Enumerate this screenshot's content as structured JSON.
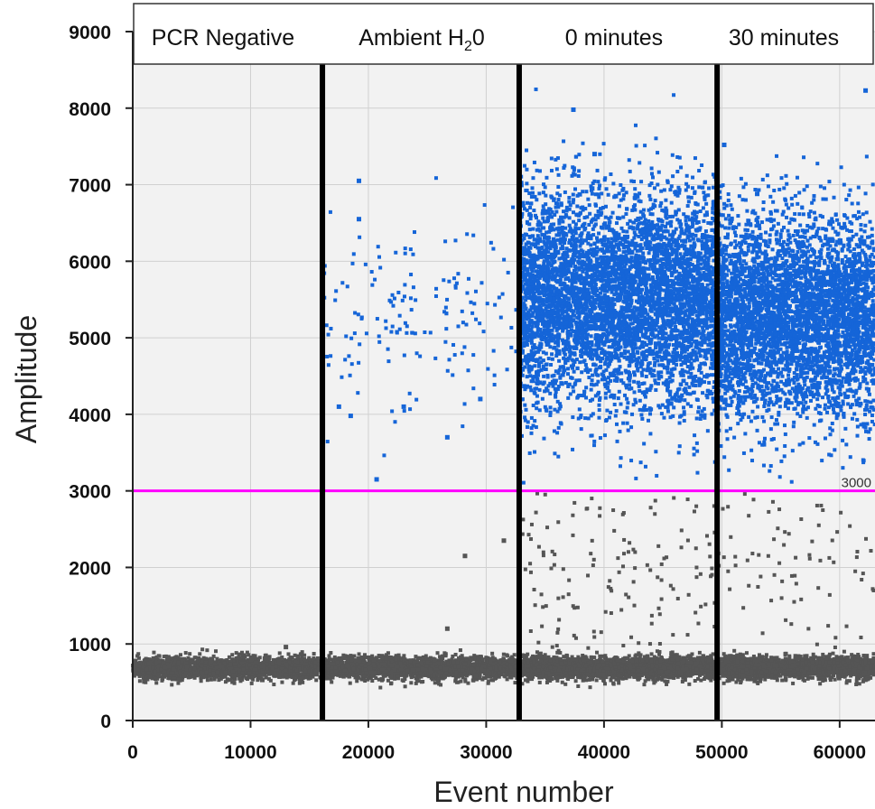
{
  "chart_data": {
    "type": "scatter",
    "xlabel": "Event number",
    "ylabel": "Amplitude",
    "xlim": [
      0,
      63000
    ],
    "ylim": [
      0,
      9000
    ],
    "x_ticks": [
      "0",
      "10000",
      "20000",
      "30000",
      "40000",
      "50000",
      "60000"
    ],
    "y_ticks": [
      "0",
      "1000",
      "2000",
      "3000",
      "4000",
      "5000",
      "6000",
      "7000",
      "8000",
      "9000"
    ],
    "grid": true,
    "threshold": {
      "value": 3000,
      "label": "3000",
      "color": "#ff00ff"
    },
    "group_dividers": [
      16100,
      32800,
      49600
    ],
    "groups": [
      {
        "label": "PCR Negative",
        "x_range": [
          0,
          16100
        ]
      },
      {
        "label": "Ambient H",
        "subscript": "2",
        "label_suffix": "0",
        "x_range": [
          16100,
          32800
        ]
      },
      {
        "label": "0 minutes",
        "x_range": [
          32800,
          49600
        ]
      },
      {
        "label": "30 minutes",
        "x_range": [
          49600,
          63000
        ]
      }
    ],
    "series": [
      {
        "color": "#1565d8",
        "clusters": [
          {
            "x_range": [
              16200,
              32700
            ],
            "y_mean": 5300,
            "y_spread": 600,
            "count": 160
          },
          {
            "x_range": [
              32900,
              49500
            ],
            "y_mean": 5500,
            "y_spread": 700,
            "count": 5200
          },
          {
            "x_range": [
              49700,
              63000
            ],
            "y_mean": 5300,
            "y_spread": 650,
            "count": 4200
          }
        ],
        "outliers": [
          [
            19200,
            7050
          ],
          [
            19200,
            6550
          ],
          [
            37400,
            7980
          ],
          [
            39200,
            7400
          ],
          [
            50200,
            7520
          ],
          [
            62200,
            8230
          ],
          [
            20700,
            3150
          ],
          [
            18500,
            3980
          ],
          [
            26700,
            3700
          ],
          [
            39000,
            6950
          ],
          [
            53000,
            6880
          ],
          [
            41000,
            6850
          ],
          [
            23000,
            4100
          ],
          [
            29500,
            4200
          ],
          [
            17500,
            4100
          ]
        ]
      },
      {
        "color": "#555555",
        "clusters": [
          {
            "x_range": [
              0,
              63000
            ],
            "y_mean": 690,
            "y_spread": 70,
            "count": 9000
          },
          {
            "x_range": [
              32900,
              49500
            ],
            "y_mean": 1900,
            "y_spread": 650,
            "count": 140
          },
          {
            "x_range": [
              49700,
              63000
            ],
            "y_mean": 1900,
            "y_spread": 650,
            "count": 80
          }
        ],
        "outliers": [
          [
            26700,
            1200
          ],
          [
            28200,
            2150
          ],
          [
            31500,
            2350
          ],
          [
            11000,
            530
          ],
          [
            13000,
            960
          ]
        ]
      }
    ]
  }
}
